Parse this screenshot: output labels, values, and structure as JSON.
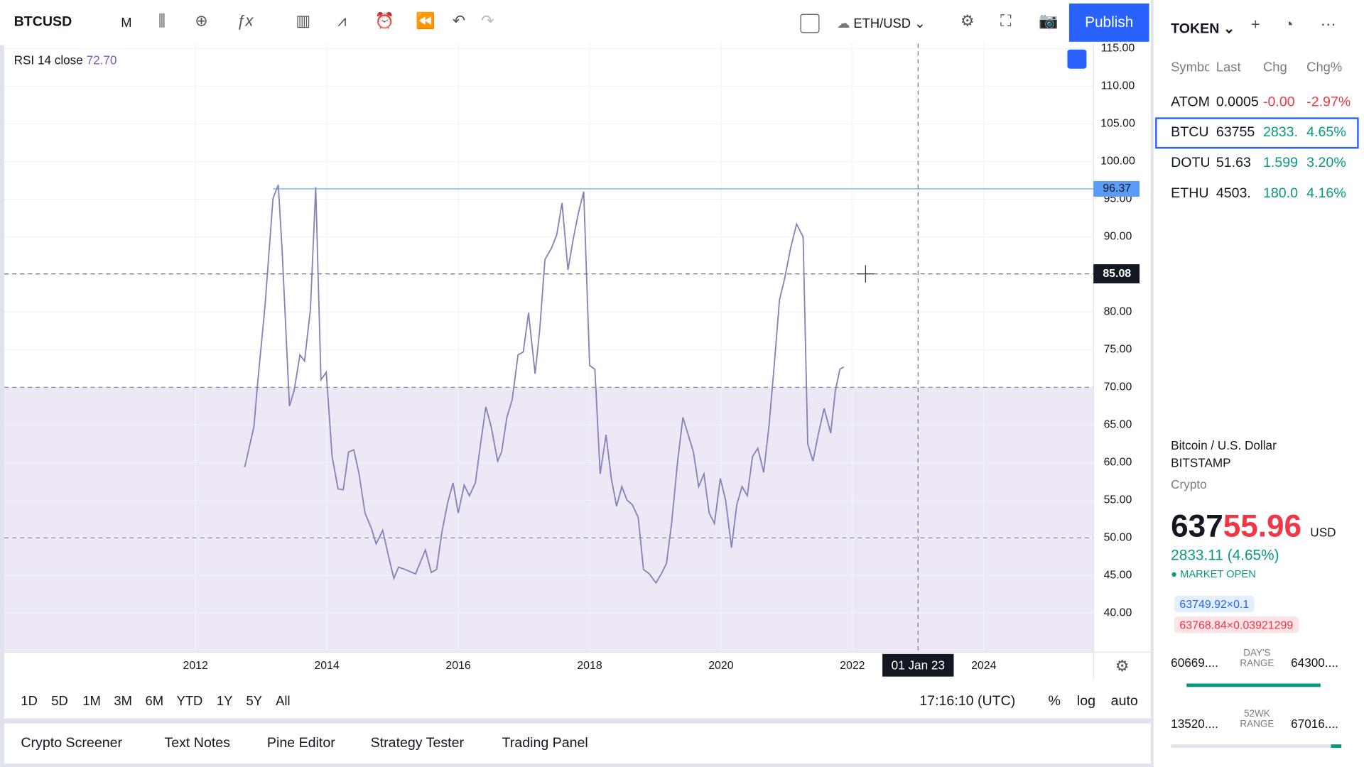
{
  "toolbar": {
    "symbol": "BTCUSD",
    "interval": "M",
    "compare_symbol": "ETH/USD",
    "publish": "Publish"
  },
  "chart_data": {
    "type": "line",
    "indicator_params": "14 close",
    "legend_value": "72.70",
    "xlim": [
      2009.09,
      2025.67
    ],
    "ylim": [
      34.8,
      115.69
    ],
    "xticks": [
      2012,
      2014,
      2016,
      2018,
      2020,
      2022,
      2024
    ],
    "yticks": [
      {
        "value": 40,
        "label": "40.00"
      },
      {
        "value": 45,
        "label": "45.00"
      },
      {
        "value": 50,
        "label": "50.00"
      },
      {
        "value": 55,
        "label": "55.00"
      },
      {
        "value": 60,
        "label": "60.00"
      },
      {
        "value": 65,
        "label": "65.00"
      },
      {
        "value": 70,
        "label": "70.00"
      },
      {
        "value": 75,
        "label": "75.00"
      },
      {
        "value": 80,
        "label": "80.00"
      },
      {
        "value": 85,
        "label": "85.00"
      },
      {
        "value": 90,
        "label": "90.00"
      },
      {
        "value": 95,
        "label": "95.00"
      },
      {
        "value": 100,
        "label": "100.00"
      },
      {
        "value": 105,
        "label": "105.00"
      },
      {
        "value": 110,
        "label": "110.00"
      },
      {
        "value": 115,
        "label": "115.00"
      }
    ],
    "grid": true,
    "band_color": "#ede7f6",
    "hlines": [
      70,
      50
    ],
    "level": {
      "value": 96.37,
      "label": "96.37",
      "color": "#5b9cf6"
    },
    "crosshair": {
      "x": 2023.0,
      "x_label": "01 Jan 23",
      "y": 85.08,
      "y_label": "85.08"
    },
    "series": [
      {
        "name": "RSI",
        "color": "#8a80b8",
        "x": [
          2012.75,
          2012.89,
          2012.94,
          2013.06,
          2013.18,
          2013.26,
          2013.32,
          2013.43,
          2013.5,
          2013.59,
          2013.66,
          2013.75,
          2013.83,
          2013.91,
          2013.99,
          2014.08,
          2014.17,
          2014.25,
          2014.33,
          2014.41,
          2014.49,
          2014.58,
          2014.68,
          2014.75,
          2014.85,
          2014.94,
          2015.02,
          2015.09,
          2015.19,
          2015.35,
          2015.5,
          2015.59,
          2015.67,
          2015.75,
          2015.84,
          2015.92,
          2016.0,
          2016.09,
          2016.17,
          2016.26,
          2016.34,
          2016.42,
          2016.5,
          2016.6,
          2016.66,
          2016.74,
          2016.82,
          2016.91,
          2016.99,
          2017.07,
          2017.17,
          2017.24,
          2017.32,
          2017.42,
          2017.5,
          2017.58,
          2017.67,
          2017.75,
          2017.83,
          2017.91,
          2018.0,
          2018.08,
          2018.16,
          2018.25,
          2018.33,
          2018.41,
          2018.49,
          2018.57,
          2018.65,
          2018.74,
          2018.82,
          2018.91,
          2019.01,
          2019.09,
          2019.17,
          2019.25,
          2019.34,
          2019.42,
          2019.5,
          2019.58,
          2019.66,
          2019.74,
          2019.82,
          2019.9,
          2019.99,
          2020.07,
          2020.16,
          2020.24,
          2020.32,
          2020.4,
          2020.48,
          2020.56,
          2020.65,
          2020.73,
          2020.81,
          2020.89,
          2020.97,
          2021.06,
          2021.15,
          2021.25,
          2021.32,
          2021.4,
          2021.48,
          2021.57,
          2021.67,
          2021.74,
          2021.81,
          2021.87
        ],
        "values": [
          59.4,
          64.8,
          70.0,
          81.0,
          95.1,
          96.9,
          88.0,
          67.5,
          69.5,
          74.3,
          73.5,
          80.4,
          96.6,
          71.0,
          72.0,
          60.8,
          56.5,
          56.4,
          61.4,
          61.7,
          58.5,
          53.3,
          51.2,
          49.2,
          51.0,
          47.5,
          44.6,
          46.1,
          45.8,
          45.2,
          48.4,
          45.4,
          45.8,
          50.7,
          54.7,
          57.3,
          53.3,
          57.0,
          55.6,
          57.3,
          62.5,
          67.4,
          64.8,
          60.2,
          61.4,
          66.0,
          68.3,
          74.3,
          74.7,
          79.9,
          71.8,
          77.6,
          87.0,
          88.5,
          90.3,
          94.5,
          85.6,
          89.7,
          93.2,
          96.0,
          72.9,
          72.4,
          58.5,
          63.7,
          57.9,
          54.2,
          56.8,
          55.0,
          54.4,
          52.7,
          45.8,
          45.2,
          44.0,
          45.2,
          46.6,
          52.1,
          60.2,
          66.0,
          63.7,
          61.4,
          56.8,
          58.5,
          53.3,
          51.9,
          57.9,
          55.0,
          48.7,
          54.4,
          56.8,
          55.6,
          60.8,
          61.9,
          58.7,
          64.8,
          72.9,
          81.6,
          84.5,
          88.5,
          91.7,
          90.0,
          62.5,
          60.2,
          63.7,
          67.2,
          63.9,
          69.5,
          72.4,
          72.7
        ]
      }
    ]
  },
  "time_range": {
    "buttons": [
      "1D",
      "5D",
      "1M",
      "3M",
      "6M",
      "YTD",
      "1Y",
      "5Y",
      "All"
    ],
    "clock": "17:16:10 (UTC)",
    "options": [
      "%",
      "log",
      "auto"
    ]
  },
  "bottom_tabs": [
    "Crypto Screener",
    "Text Notes",
    "Pine Editor",
    "Strategy Tester",
    "Trading Panel"
  ],
  "watchlist": {
    "title": "TOKEN",
    "columns": [
      "Symbo",
      "Last",
      "Chg",
      "Chg%"
    ],
    "rows": [
      {
        "cells": [
          "ATOM",
          "0.0005",
          "-0.00",
          "-2.97%"
        ],
        "color": "#f23645"
      },
      {
        "cells": [
          "BTCU",
          "63755",
          "2833.",
          "4.65%"
        ],
        "color": "#089981"
      },
      {
        "cells": [
          "DOTU",
          "51.63",
          "1.599",
          "3.20%"
        ],
        "color": "#089981"
      },
      {
        "cells": [
          "ETHU",
          "4503.",
          "180.0",
          "4.16%"
        ],
        "color": "#089981"
      }
    ]
  },
  "details": {
    "name": "Bitcoin / U.S. Dollar",
    "exchange": "BITSTAMP",
    "category": "Crypto",
    "price": [
      "637",
      "55.96"
    ],
    "currency": "USD",
    "change": "2833.11 (4.65%)",
    "status": "MARKET OPEN",
    "bid": "63749.92×0.1",
    "ask": "63768.84×0.03921299",
    "day_range": {
      "low": "60669....",
      "label": "DAY'S RANGE",
      "high": "64300...."
    },
    "week52_range": {
      "low": "13520....",
      "label": "52WK RANGE",
      "high": "67016...."
    }
  }
}
